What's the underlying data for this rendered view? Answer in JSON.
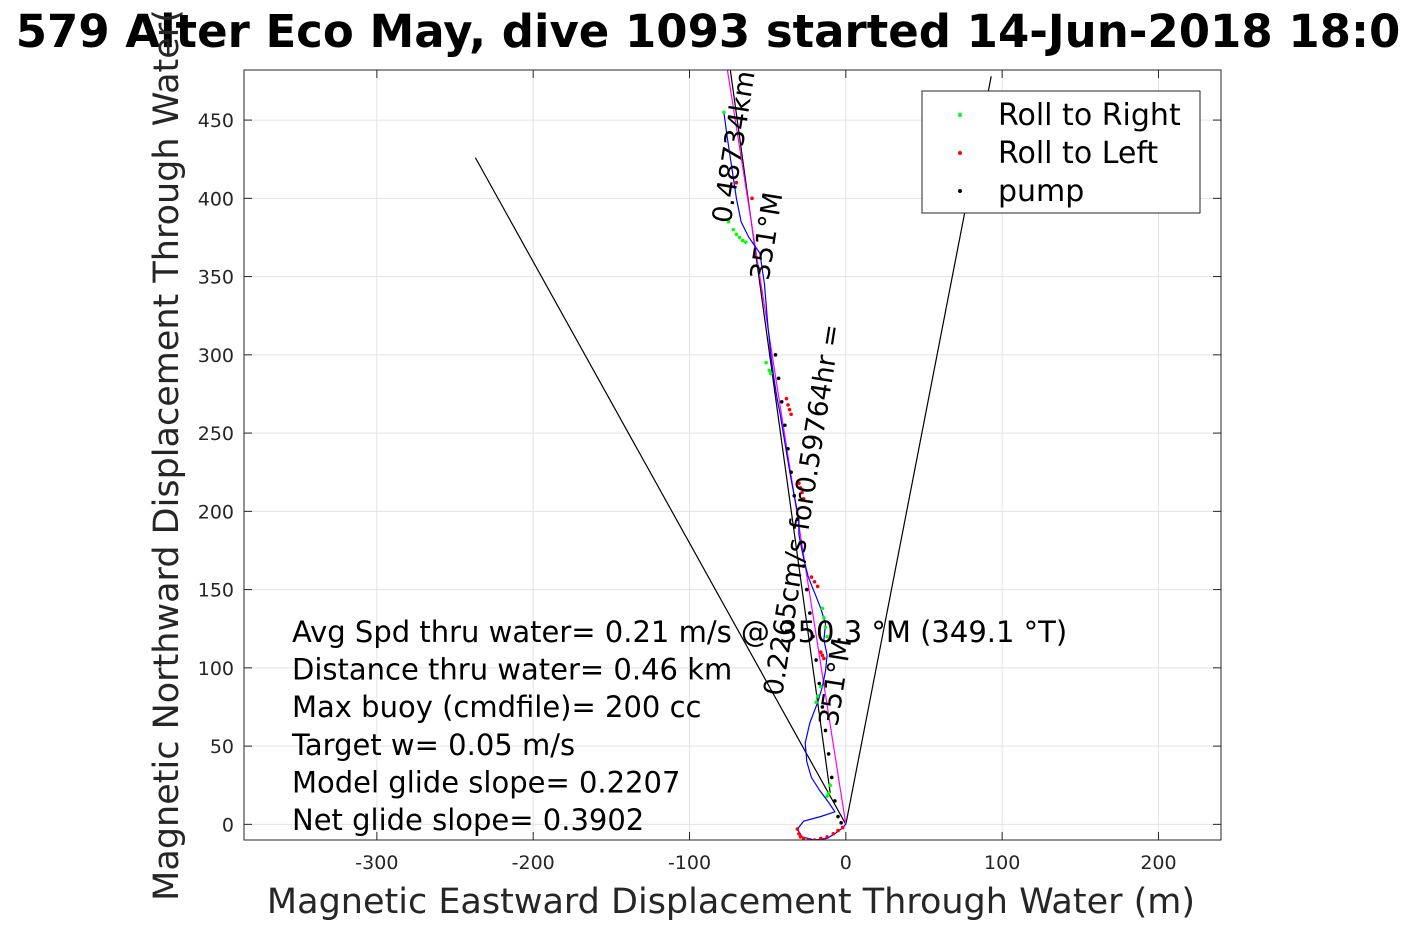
{
  "chart_data": {
    "type": "scatter",
    "title": "579 Alter Eco May, dive 1093 started 14-Jun-2018 18:0",
    "xlabel": "Magnetic Eastward Displacement Through Water (m)",
    "ylabel": "Magnetic Northward Displacement Through Water(",
    "xlim": [
      -385,
      240
    ],
    "ylim": [
      -10,
      482
    ],
    "xticks": [
      -300,
      -200,
      -100,
      0,
      100,
      200
    ],
    "yticks": [
      0,
      50,
      100,
      150,
      200,
      250,
      300,
      350,
      400,
      450
    ],
    "grid": true,
    "legend_position": "top-right",
    "legend": [
      {
        "label": "Roll to Right",
        "color": "#00ff00"
      },
      {
        "label": "Roll to Left",
        "color": "#ff0000"
      },
      {
        "label": "pump",
        "color": "#000000"
      }
    ],
    "colors": {
      "track": "#0000ff",
      "heading_line": "#ff00ff",
      "cone_line": "#000000"
    },
    "track": {
      "x": [
        -78,
        -76,
        -73,
        -70,
        -67,
        -62,
        -55,
        -52,
        -50,
        -48,
        -46,
        -44,
        -42,
        -40,
        -38,
        -36,
        -34,
        -32,
        -30,
        -30,
        -27,
        -24,
        -20,
        -16,
        -13,
        -14,
        -12,
        -13,
        -15,
        -18,
        -23,
        -26,
        -25,
        -22,
        -17,
        -11,
        -7,
        -16,
        -27,
        -31,
        -28,
        -20,
        -12,
        -7,
        -3,
        0
      ],
      "y": [
        455,
        440,
        420,
        400,
        385,
        375,
        365,
        345,
        320,
        300,
        285,
        272,
        262,
        250,
        238,
        226,
        215,
        205,
        195,
        185,
        170,
        158,
        148,
        138,
        128,
        118,
        108,
        98,
        88,
        78,
        65,
        52,
        40,
        30,
        22,
        14,
        8,
        5,
        2,
        -3,
        -8,
        -10,
        -9,
        -6,
        -3,
        0
      ]
    },
    "roll_right": {
      "x": [
        -78,
        -75,
        -72,
        -70,
        -68,
        -66,
        -64,
        -51,
        -49,
        -48,
        -15,
        -14,
        -13,
        -12,
        -16,
        -18,
        -19,
        -10,
        -11,
        -12
      ],
      "y": [
        455,
        385,
        380,
        377,
        375,
        373,
        372,
        295,
        290,
        288,
        138,
        132,
        126,
        120,
        88,
        82,
        78,
        25,
        20,
        18
      ]
    },
    "roll_left": {
      "x": [
        -70,
        -60,
        -38,
        -37,
        -36,
        -35,
        -30,
        -29,
        -28,
        -27,
        -22,
        -20,
        -18,
        -16,
        -15,
        -14,
        -31,
        -30,
        -29,
        -27,
        -24,
        -20,
        -16,
        -12,
        -8,
        -5,
        -2
      ],
      "y": [
        410,
        400,
        272,
        268,
        265,
        262,
        218,
        215,
        212,
        208,
        158,
        155,
        152,
        110,
        108,
        106,
        -3,
        -6,
        -8,
        -9,
        -10,
        -10,
        -9,
        -8,
        -6,
        -4,
        -2
      ]
    },
    "pump": {
      "x": [
        -45,
        -43,
        -41,
        -39,
        -37,
        -35,
        -33,
        -31,
        -29,
        -27,
        -25,
        -23,
        -21,
        -19,
        -17,
        -15,
        -13,
        -11,
        -9,
        -7,
        -5,
        -3
      ],
      "y": [
        300,
        285,
        270,
        255,
        240,
        225,
        210,
        195,
        180,
        165,
        150,
        135,
        120,
        105,
        90,
        75,
        60,
        45,
        30,
        15,
        5,
        1
      ]
    },
    "heading_line": {
      "x": [
        0,
        -77
      ],
      "y": [
        0,
        490
      ]
    },
    "cone_lines": [
      {
        "x": [
          0,
          -237
        ],
        "y": [
          0,
          426
        ]
      },
      {
        "x": [
          0,
          93
        ],
        "y": [
          0,
          478
        ]
      },
      {
        "x": [
          -10,
          -75
        ],
        "y": [
          20,
          490
        ]
      }
    ],
    "line_labels": [
      {
        "text": "0.48734km",
        "x": -66,
        "y": 432,
        "angle": -81
      },
      {
        "text": "351°M",
        "x": -45,
        "y": 375,
        "angle": -81
      },
      {
        "text": "0.2265cm/s for0.59764hr =",
        "x": -22,
        "y": 200,
        "angle": -81
      },
      {
        "text": "351°M",
        "x": -1,
        "y": 90,
        "angle": -81
      }
    ],
    "annotations": [
      "Avg Spd thru water=  0.21 m/s @ 350.3 °M (349.1 °T)",
      "Distance thru water=  0.46 km",
      "Max buoy (cmdfile)= 200 cc",
      "Target w= 0.05 m/s",
      "Model glide slope= 0.2207",
      "Net glide slope= 0.3902"
    ]
  }
}
